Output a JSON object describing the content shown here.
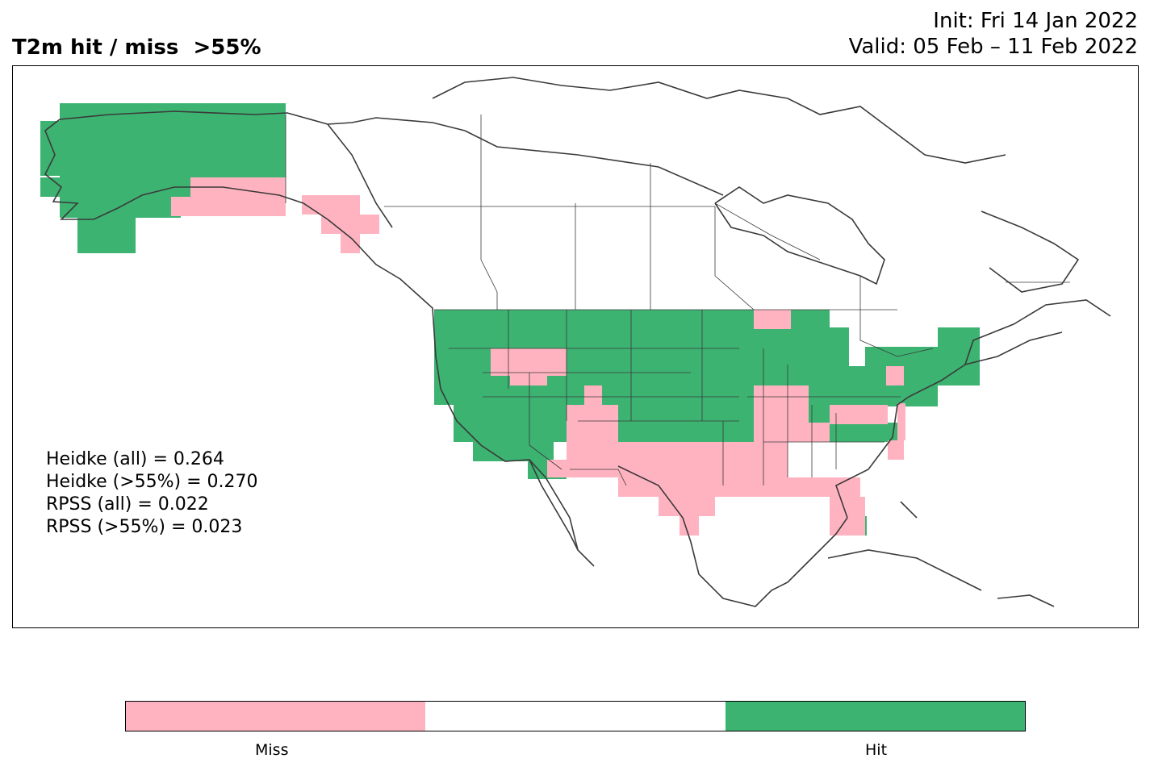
{
  "title": "T2m hit / miss  >55%",
  "init": "Init: Fri 14 Jan 2022",
  "valid": "Valid: 05 Feb – 11 Feb 2022",
  "scores": [
    "Heidke (all) = 0.264",
    "Heidke (>55%) = 0.270",
    "RPSS (all) = 0.022",
    "RPSS (>55%) = 0.023"
  ],
  "legend": {
    "miss_label": "Miss",
    "hit_label": "Hit",
    "colors": {
      "miss": "#ffb3c1",
      "neutral": "#ffffff",
      "hit": "#3cb371"
    }
  }
}
